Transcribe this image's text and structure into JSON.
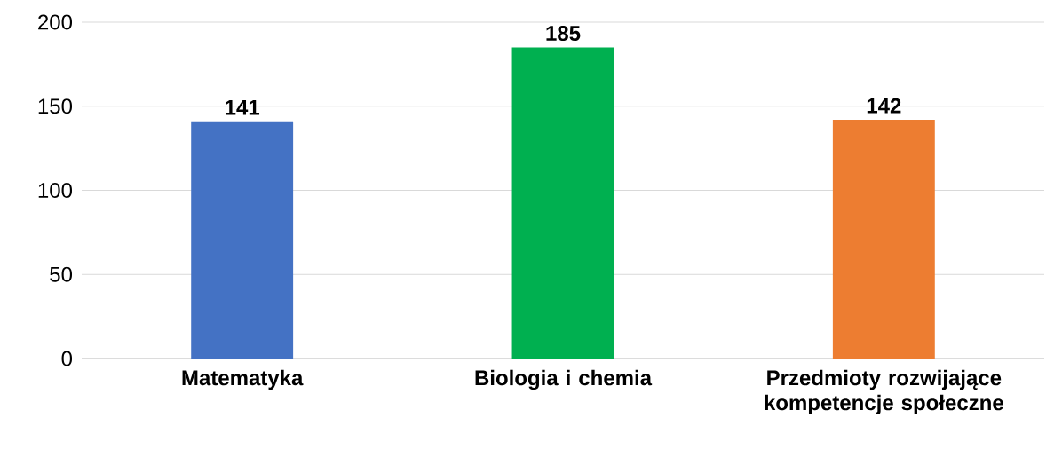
{
  "chart_data": {
    "type": "bar",
    "categories": [
      "Matematyka",
      "Biologia i chemia",
      "Przedmioty rozwijające kompetencje społeczne"
    ],
    "values": [
      141,
      185,
      142
    ],
    "colors": [
      "#4472c4",
      "#00b050",
      "#ed7d31"
    ],
    "ylim": [
      0,
      200
    ],
    "yticks": [
      0,
      50,
      100,
      150,
      200
    ],
    "grid": "y",
    "data_labels": true
  }
}
